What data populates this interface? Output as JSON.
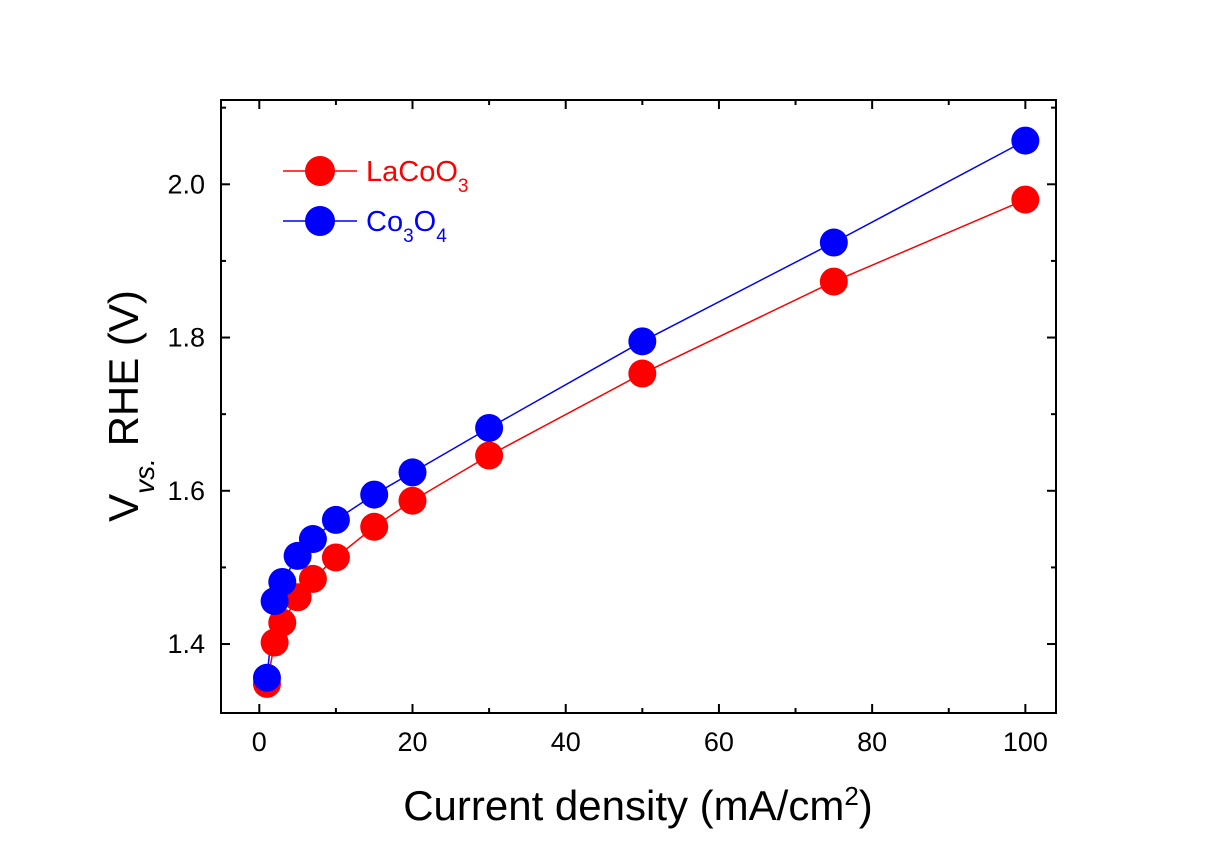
{
  "chart_data": {
    "type": "line",
    "title": "",
    "xlabel": "Current density (mA/cm",
    "xlabel_sup": "2",
    "xlabel_end": ")",
    "ylabel_main": "V",
    "ylabel_sub": "vs.",
    "ylabel_rest": " RHE (V)",
    "xlim": [
      -5,
      104
    ],
    "ylim": [
      1.31,
      2.11
    ],
    "xticks": [
      0,
      20,
      40,
      60,
      80,
      100
    ],
    "xtick_labels": [
      "0",
      "20",
      "40",
      "60",
      "80",
      "100"
    ],
    "yticks": [
      1.4,
      1.6,
      1.8,
      2.0
    ],
    "ytick_labels": [
      "1.4",
      "1.6",
      "1.8",
      "2.0"
    ],
    "grid": false,
    "legend_position": "top-left",
    "series": [
      {
        "name_parts": [
          "LaCo",
          "O",
          "3"
        ],
        "color": "#ff0000",
        "x": [
          1,
          2,
          3,
          5,
          7,
          10,
          15,
          20,
          30,
          50,
          75,
          100
        ],
        "y": [
          1.348,
          1.402,
          1.428,
          1.461,
          1.485,
          1.513,
          1.553,
          1.587,
          1.646,
          1.753,
          1.873,
          1.98
        ]
      },
      {
        "name_parts": [
          "Co",
          "3",
          "O",
          "4"
        ],
        "color": "#0000ff",
        "x": [
          1,
          2,
          3,
          5,
          7,
          10,
          15,
          20,
          30,
          50,
          75,
          100
        ],
        "y": [
          1.356,
          1.456,
          1.481,
          1.515,
          1.537,
          1.562,
          1.595,
          1.624,
          1.682,
          1.795,
          1.924,
          2.057
        ]
      }
    ]
  }
}
